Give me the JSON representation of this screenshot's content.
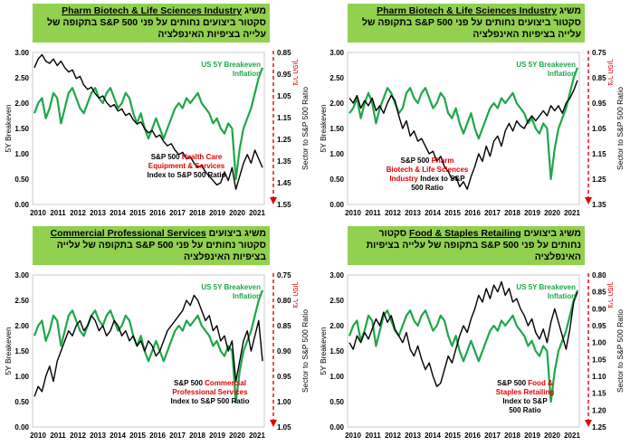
{
  "chart_data": [
    {
      "type": "line",
      "title_parts": [
        "משיג ",
        "Pharm Biotech & Life Sciences Industry",
        " סקטור ",
        "ביצועים נחותים על פני S&P 500 בתקופה של עלייה בציפיות האינפלציה"
      ],
      "title_underline_index": 1,
      "ylabel_left": "5Y Breakeven",
      "ylabel_right": "Sector to S&P 500 Ratio",
      "arrow_label": "ציר הפוך",
      "yticks_left": [
        "0.00",
        "0.50",
        "1.00",
        "1.50",
        "2.00",
        "2.50",
        "3.00"
      ],
      "yticks_right": [
        "0.75",
        "0.85",
        "0.95",
        "1.05",
        "1.15",
        "1.25",
        "1.35"
      ],
      "xticks": [
        "2010",
        "2011",
        "2012",
        "2013",
        "2014",
        "2015",
        "2016",
        "2017",
        "2018",
        "2019",
        "2020",
        "2021"
      ],
      "series_labels": [
        {
          "lines": [
            "US 5Y Breakeven",
            "Inflation"
          ],
          "color": "#1fa64a"
        },
        {
          "lines": [
            "S&P 500   Pharm",
            "Biotech & Life Sciences",
            "Industry Index to S&P",
            "500 Ratio"
          ],
          "color": "#000000",
          "red_words": [
            "Pharm",
            "Biotech & Life Sciences",
            "Industry"
          ]
        }
      ],
      "breakeven": [
        1.8,
        1.9,
        2.1,
        1.7,
        2.0,
        2.2,
        2.0,
        1.6,
        1.9,
        2.1,
        2.3,
        2.2,
        2.0,
        1.8,
        1.9,
        2.2,
        2.3,
        2.1,
        2.0,
        2.2,
        2.3,
        2.1,
        1.9,
        2.0,
        2.2,
        2.1,
        1.8,
        1.7,
        1.9,
        1.6,
        1.4,
        1.6,
        1.8,
        1.5,
        1.3,
        1.5,
        1.7,
        1.9,
        2.0,
        1.9,
        2.1,
        2.0,
        2.1,
        2.2,
        2.0,
        1.9,
        1.8,
        1.6,
        1.7,
        1.5,
        1.4,
        1.6,
        1.5,
        0.5,
        1.1,
        1.5,
        1.7,
        1.9,
        2.2,
        2.5,
        2.7
      ],
      "ratio": [
        0.93,
        0.95,
        0.92,
        0.97,
        0.94,
        0.96,
        0.93,
        0.98,
        0.96,
        0.99,
        0.95,
        0.92,
        0.94,
        1.0,
        1.05,
        1.02,
        1.08,
        1.06,
        1.1,
        1.09,
        1.12,
        1.15,
        1.14,
        1.18,
        1.16,
        1.2,
        1.22,
        1.25,
        1.24,
        1.28,
        1.26,
        1.29,
        1.24,
        1.2,
        1.15,
        1.18,
        1.12,
        1.16,
        1.1,
        1.08,
        1.12,
        1.06,
        1.03,
        1.06,
        1.02,
        1.04,
        1.05,
        1.02,
        1.0,
        1.02,
        1.0,
        0.98,
        1.0,
        0.96,
        0.98,
        0.96,
        0.99,
        0.95,
        0.93,
        0.9,
        0.86
      ],
      "right_range": [
        0.75,
        1.35
      ],
      "right_inverted": true
    },
    {
      "type": "line",
      "title_parts": [
        "משיג ",
        "Pharm Biotech & Life Sciences Industry",
        " סקטור ",
        "ביצועים נחותים על פני S&P 500 בתקופה של עלייה בציפיות האינפלציה"
      ],
      "title_underline_index": 1,
      "ylabel_left": "5Y Breakeven",
      "ylabel_right": "Sector to S&P 500 Ratio",
      "arrow_label": "ציר הפוך",
      "yticks_left": [
        "0.00",
        "0.50",
        "1.00",
        "1.50",
        "2.00",
        "2.50",
        "3.00"
      ],
      "yticks_right": [
        "0.85",
        "0.95",
        "1.05",
        "1.15",
        "1.25",
        "1.35",
        "1.45",
        "1.55"
      ],
      "xticks": [
        "2010",
        "2011",
        "2012",
        "2013",
        "2014",
        "2015",
        "2016",
        "2017",
        "2018",
        "2019",
        "2020",
        "2021"
      ],
      "series_labels": [
        {
          "lines": [
            "US 5Y Breakeven",
            "Inflation"
          ],
          "color": "#1fa64a"
        },
        {
          "lines": [
            "S&P 500 Health Care",
            "Equipment & Services",
            "Index to S&P 500 Ratio"
          ],
          "color": "#000000",
          "red_words": [
            "Health Care",
            "Equipment & Services"
          ]
        }
      ],
      "breakeven": [
        1.8,
        2.0,
        2.1,
        1.7,
        1.9,
        2.2,
        2.1,
        1.6,
        1.9,
        2.2,
        2.3,
        2.1,
        1.9,
        1.8,
        2.0,
        2.2,
        2.3,
        2.1,
        2.0,
        2.2,
        2.3,
        2.1,
        1.9,
        2.0,
        2.2,
        2.1,
        1.8,
        1.6,
        1.8,
        1.5,
        1.3,
        1.5,
        1.7,
        1.5,
        1.3,
        1.5,
        1.7,
        1.9,
        2.0,
        1.9,
        2.1,
        2.0,
        2.1,
        2.2,
        2.0,
        1.9,
        1.8,
        1.6,
        1.7,
        1.5,
        1.4,
        1.6,
        1.5,
        0.5,
        1.1,
        1.5,
        1.7,
        1.9,
        2.2,
        2.5,
        2.7
      ],
      "ratio": [
        0.92,
        0.88,
        0.86,
        0.89,
        0.9,
        0.88,
        0.91,
        0.89,
        0.92,
        0.94,
        0.93,
        0.97,
        0.96,
        1.0,
        1.02,
        1.01,
        1.04,
        1.06,
        1.05,
        1.08,
        1.1,
        1.09,
        1.12,
        1.11,
        1.14,
        1.13,
        1.16,
        1.18,
        1.17,
        1.2,
        1.22,
        1.21,
        1.24,
        1.23,
        1.26,
        1.28,
        1.27,
        1.3,
        1.32,
        1.31,
        1.34,
        1.33,
        1.36,
        1.38,
        1.37,
        1.4,
        1.42,
        1.44,
        1.46,
        1.45,
        1.4,
        1.44,
        1.38,
        1.48,
        1.42,
        1.36,
        1.32,
        1.36,
        1.3,
        1.34,
        1.38
      ],
      "right_range": [
        0.85,
        1.55
      ],
      "right_inverted": true
    },
    {
      "type": "line",
      "title_parts": [
        "משיג ביצועים ",
        "Food & Staples Retailing",
        " סקטור ",
        "נחותים על פני S&P 500 בתקופה של עלייה בציפיות האינפלציה"
      ],
      "title_underline_index": 1,
      "ylabel_left": "5Y Breakeven",
      "ylabel_right": "Sector to S&P 500 Ratio",
      "arrow_label": "ציר הפוך",
      "yticks_left": [
        "0.00",
        "0.50",
        "1.00",
        "1.50",
        "2.00",
        "2.50",
        "3.00"
      ],
      "yticks_right": [
        "0.80",
        "0.85",
        "0.90",
        "0.95",
        "1.00",
        "1.05",
        "1.10",
        "1.15",
        "1.20",
        "1.25"
      ],
      "xticks": [
        "2010",
        "2011",
        "2012",
        "2013",
        "2014",
        "2015",
        "2016",
        "2017",
        "2018",
        "2019",
        "2020",
        "2021"
      ],
      "series_labels": [
        {
          "lines": [
            "US 5Y Breakeven",
            "Inflation"
          ],
          "color": "#1fa64a"
        },
        {
          "lines": [
            "S&P 500 Food &",
            "Staples Retailing",
            "Index to S&P",
            "500 Ratio"
          ],
          "color": "#000000",
          "red_words": [
            "Food &",
            "Staples Retailing"
          ]
        }
      ],
      "breakeven": [
        1.8,
        2.0,
        2.1,
        1.7,
        1.9,
        2.2,
        2.1,
        1.6,
        1.9,
        2.2,
        2.3,
        2.1,
        1.9,
        1.8,
        2.0,
        2.2,
        2.3,
        2.1,
        2.0,
        2.2,
        2.3,
        2.1,
        1.9,
        2.0,
        2.2,
        2.1,
        1.8,
        1.6,
        1.8,
        1.5,
        1.3,
        1.5,
        1.7,
        1.5,
        1.3,
        1.5,
        1.7,
        1.9,
        2.0,
        1.9,
        2.1,
        2.0,
        2.1,
        2.2,
        2.0,
        1.9,
        1.8,
        1.6,
        1.7,
        1.5,
        1.4,
        1.6,
        1.5,
        0.5,
        1.1,
        1.5,
        1.7,
        1.9,
        2.2,
        2.5,
        2.7
      ],
      "ratio": [
        1.0,
        1.02,
        0.98,
        1.0,
        0.97,
        0.99,
        0.96,
        0.93,
        0.95,
        0.91,
        0.94,
        0.92,
        0.96,
        0.98,
        1.0,
        0.97,
        1.02,
        1.04,
        1.01,
        1.05,
        1.08,
        1.06,
        1.1,
        1.13,
        1.12,
        1.08,
        1.04,
        1.06,
        1.02,
        0.98,
        0.95,
        0.97,
        0.93,
        0.9,
        0.86,
        0.88,
        0.84,
        0.87,
        0.83,
        0.85,
        0.82,
        0.86,
        0.84,
        0.88,
        0.87,
        0.9,
        0.92,
        0.95,
        0.93,
        0.97,
        0.99,
        0.96,
        1.0,
        0.94,
        0.9,
        0.94,
        0.98,
        1.02,
        0.96,
        0.88,
        0.85
      ],
      "right_range": [
        0.8,
        1.25
      ],
      "right_inverted": true
    },
    {
      "type": "line",
      "title_parts": [
        "משיג ביצועים ",
        "Commercial Professional Services",
        " סקטור ",
        "נחותים על פני S&P 500 בתקופה של עלייה בציפיות האינפלציה"
      ],
      "title_underline_index": 1,
      "ylabel_left": "5Y Breakeven",
      "ylabel_right": "Sector to S&P 500 Ratio",
      "arrow_label": "ציר הפוך",
      "yticks_left": [
        "0.00",
        "0.50",
        "1.00",
        "1.50",
        "2.00",
        "2.50",
        "3.00"
      ],
      "yticks_right": [
        "0.75",
        "0.80",
        "0.85",
        "0.90",
        "0.95",
        "1.00",
        "1.05"
      ],
      "xticks": [
        "2010",
        "2011",
        "2012",
        "2013",
        "2014",
        "2015",
        "2016",
        "2017",
        "2018",
        "2019",
        "2020",
        "2021"
      ],
      "series_labels": [
        {
          "lines": [
            "US 5Y Breakeven",
            "Inflation"
          ],
          "color": "#1fa64a"
        },
        {
          "lines": [
            "S&P 500 Commercial",
            "Professional Services",
            "Index to S&P 500 Ratio"
          ],
          "color": "#000000",
          "red_words": [
            "Commercial",
            "Professional Services"
          ]
        }
      ],
      "breakeven": [
        1.8,
        2.0,
        2.1,
        1.7,
        1.9,
        2.2,
        2.1,
        1.6,
        1.9,
        2.2,
        2.3,
        2.1,
        1.9,
        1.8,
        2.0,
        2.2,
        2.3,
        2.1,
        2.0,
        2.2,
        2.3,
        2.1,
        1.9,
        2.0,
        2.2,
        2.1,
        1.8,
        1.6,
        1.8,
        1.5,
        1.3,
        1.5,
        1.7,
        1.5,
        1.3,
        1.5,
        1.7,
        1.9,
        2.0,
        1.9,
        2.1,
        2.0,
        2.1,
        2.2,
        2.0,
        1.9,
        1.8,
        1.6,
        1.7,
        1.5,
        1.4,
        1.6,
        1.5,
        0.5,
        1.1,
        1.5,
        1.7,
        1.9,
        2.2,
        2.5,
        2.7
      ],
      "ratio": [
        0.99,
        0.97,
        0.98,
        0.95,
        0.93,
        0.96,
        0.92,
        0.9,
        0.88,
        0.86,
        0.87,
        0.85,
        0.84,
        0.86,
        0.85,
        0.83,
        0.84,
        0.86,
        0.85,
        0.87,
        0.86,
        0.84,
        0.85,
        0.87,
        0.86,
        0.88,
        0.87,
        0.89,
        0.88,
        0.9,
        0.88,
        0.89,
        0.91,
        0.9,
        0.88,
        0.86,
        0.85,
        0.84,
        0.83,
        0.82,
        0.8,
        0.81,
        0.79,
        0.8,
        0.82,
        0.84,
        0.83,
        0.86,
        0.85,
        0.88,
        0.87,
        0.9,
        0.88,
        0.96,
        0.92,
        0.88,
        0.86,
        0.9,
        0.87,
        0.84,
        0.92
      ],
      "right_range": [
        0.75,
        1.05
      ],
      "right_inverted": true
    }
  ]
}
